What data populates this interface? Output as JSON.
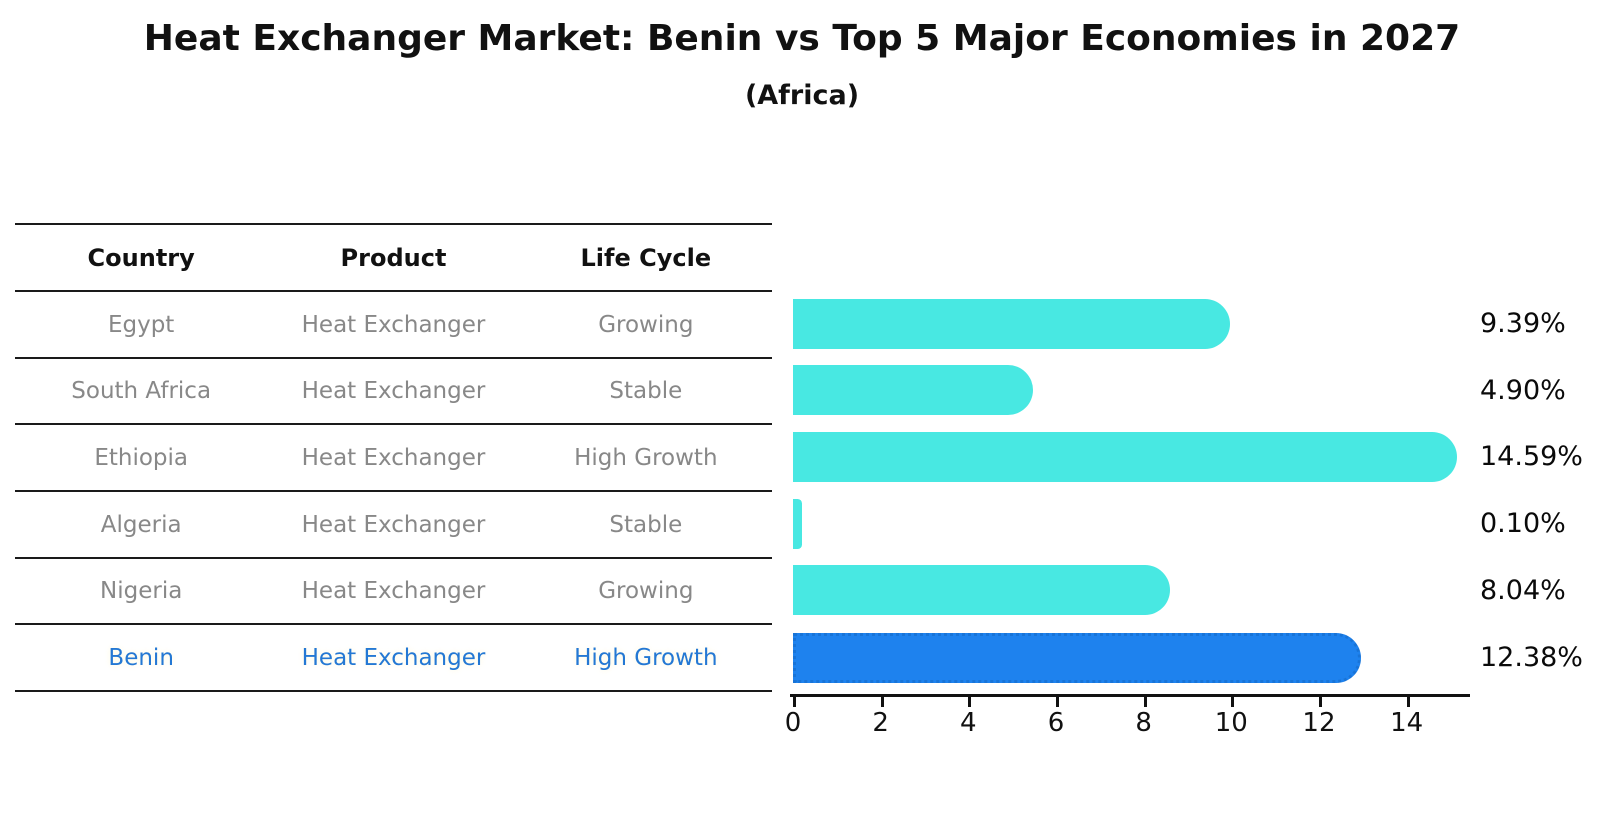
{
  "title": "Heat Exchanger Market: Benin vs Top 5 Major Economies in 2027",
  "subtitle": "(Africa)",
  "table": {
    "headers": {
      "country": "Country",
      "product": "Product",
      "life_cycle": "Life Cycle"
    },
    "rows": [
      {
        "country": "Egypt",
        "product": "Heat Exchanger",
        "life_cycle": "Growing",
        "highlight": false
      },
      {
        "country": "South Africa",
        "product": "Heat Exchanger",
        "life_cycle": "Stable",
        "highlight": false
      },
      {
        "country": "Ethiopia",
        "product": "Heat Exchanger",
        "life_cycle": "High Growth",
        "highlight": false
      },
      {
        "country": "Algeria",
        "product": "Heat Exchanger",
        "life_cycle": "Stable",
        "highlight": false
      },
      {
        "country": "Nigeria",
        "product": "Heat Exchanger",
        "life_cycle": "Growing",
        "highlight": false
      },
      {
        "country": "Benin",
        "product": "Heat Exchanger",
        "life_cycle": "High Growth",
        "highlight": true
      }
    ]
  },
  "chart_data": {
    "type": "bar",
    "orientation": "horizontal",
    "title": "Heat Exchanger Market: Benin vs Top 5 Major Economies in 2027",
    "subtitle": "(Africa)",
    "categories": [
      "Egypt",
      "South Africa",
      "Ethiopia",
      "Algeria",
      "Nigeria",
      "Benin"
    ],
    "values": [
      9.39,
      4.9,
      14.59,
      0.1,
      8.04,
      12.38
    ],
    "value_labels": [
      "9.39%",
      "4.90%",
      "14.59%",
      "0.10%",
      "8.04%",
      "12.38%"
    ],
    "unit": "%",
    "xlabel": "",
    "ylabel": "",
    "xlim": [
      0,
      15.5
    ],
    "x_ticks": [
      0,
      2,
      4,
      6,
      8,
      10,
      12,
      14
    ],
    "grid": false,
    "legend": false,
    "highlight_index": 5,
    "bar_color": "#48E8E2",
    "highlight_color": "#1E82EE",
    "highlight_edge_color": "#1874D8"
  },
  "colors": {
    "background": "#ffffff",
    "bar": "#48E8E2",
    "benin_bar": "#1E82EE",
    "benin_bar_edge": "#1874D8",
    "row_text": "#888888",
    "benin_text": "#2478D4",
    "header_text": "#111111",
    "axis": "#111111"
  }
}
